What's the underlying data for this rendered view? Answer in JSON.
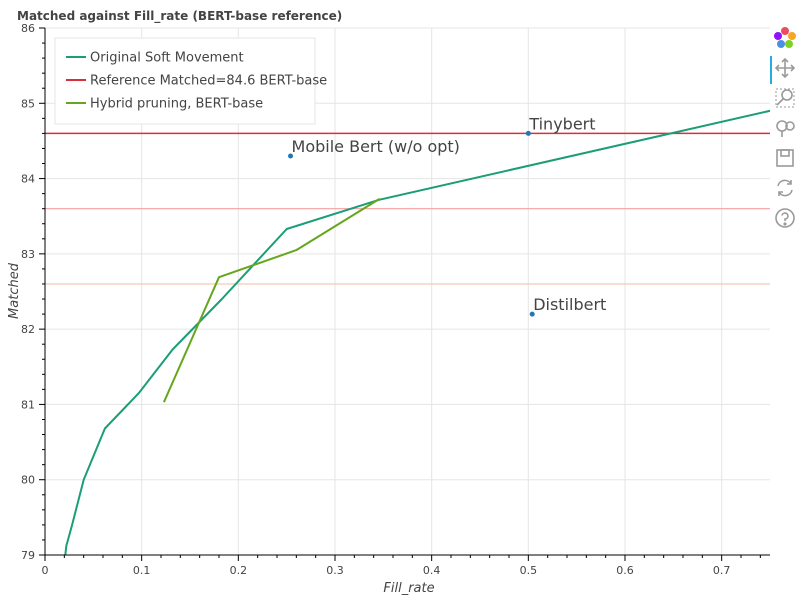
{
  "chart_data": {
    "type": "line",
    "title": "Matched against Fill_rate (BERT-base reference)",
    "xlabel": "Fill_rate",
    "ylabel": "Matched",
    "xlim": [
      0,
      0.75
    ],
    "ylim": [
      79,
      86
    ],
    "xticks": [
      0,
      0.1,
      0.2,
      0.3,
      0.4,
      0.5,
      0.6,
      0.7
    ],
    "xtick_labels": [
      "0",
      "0.1",
      "0.2",
      "0.3",
      "0.4",
      "0.5",
      "0.6",
      "0.7"
    ],
    "yticks": [
      79,
      80,
      81,
      82,
      83,
      84,
      85,
      86
    ],
    "ytick_labels": [
      "79",
      "80",
      "81",
      "82",
      "83",
      "84",
      "85",
      "86"
    ],
    "grid": true,
    "legend_position": "top-left",
    "series": [
      {
        "name": "Original Soft Movement",
        "color": "#1b9e77",
        "x": [
          0.021,
          0.022,
          0.028,
          0.04,
          0.062,
          0.097,
          0.132,
          0.183,
          0.25,
          0.346,
          0.76
        ],
        "y": [
          79.0,
          79.12,
          79.4,
          80.0,
          80.68,
          81.15,
          81.73,
          82.4,
          83.33,
          83.72,
          84.93
        ]
      },
      {
        "name": "Hybrid pruning, BERT-base",
        "color": "#66a61e",
        "x": [
          0.123,
          0.18,
          0.26,
          0.346
        ],
        "y": [
          81.03,
          82.69,
          83.05,
          83.73
        ]
      }
    ],
    "reference_lines": [
      {
        "name": "Reference Matched=84.6 BERT-base",
        "y": 84.6,
        "color": "#d7303a"
      },
      {
        "name": "",
        "y": 83.6,
        "color": "#f4a0a0"
      },
      {
        "name": "",
        "y": 82.6,
        "color": "#f3c9b5"
      }
    ],
    "annotations": [
      {
        "label": "Tinybert",
        "x": 0.5,
        "y": 84.6
      },
      {
        "label": "Mobile Bert (w/o opt)",
        "x": 0.254,
        "y": 84.3
      },
      {
        "label": "Distilbert",
        "x": 0.504,
        "y": 82.2
      }
    ],
    "point_color": "#1f77b4"
  },
  "legend": {
    "entries": [
      {
        "label": "Original Soft Movement",
        "color": "#1b9e77"
      },
      {
        "label": "Reference Matched=84.6 BERT-base",
        "color": "#d7303a"
      },
      {
        "label": "Hybrid pruning, BERT-base",
        "color": "#66a61e"
      }
    ]
  },
  "toolbar": {
    "tools": [
      {
        "name": "bokeh-logo-icon"
      },
      {
        "name": "pan-tool-icon"
      },
      {
        "name": "box-zoom-tool-icon"
      },
      {
        "name": "wheel-zoom-tool-icon"
      },
      {
        "name": "save-tool-icon"
      },
      {
        "name": "reset-tool-icon"
      },
      {
        "name": "help-tool-icon"
      }
    ]
  }
}
